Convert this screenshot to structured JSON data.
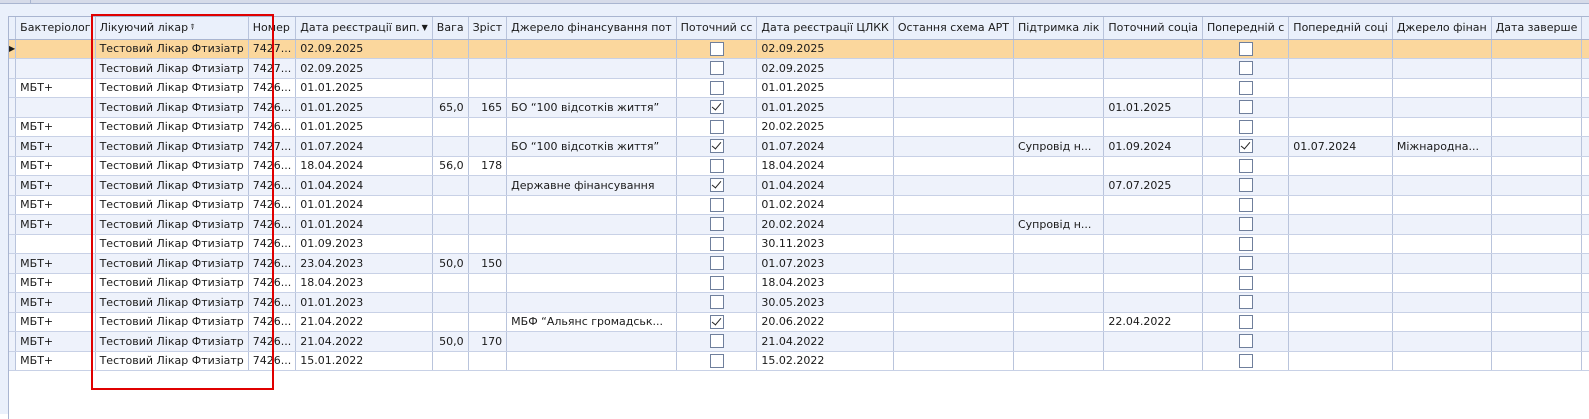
{
  "columns": [
    "Бактеріолог",
    "Лікуючий лікар",
    "Номер",
    "Дата реєстрації вип.",
    "Вага",
    "Зріст",
    "Джерело фінансування пот",
    "Поточний сс",
    "Дата реєстрації ЦЛКК",
    "Остання схема АРТ",
    "Підтримка лік",
    "Поточний соціа",
    "Попередній с",
    "Попередній соці",
    "Джерело фінан",
    "Дата заверше"
  ],
  "sort_icon": "sort-desc-icon",
  "filter_icon": "filter-icon",
  "highlight_color": "#e00000",
  "selected_row_color": "#fbd79d",
  "rows": [
    [
      "",
      "Тестовий Лікар Фтизіатр",
      "7427...",
      "02.09.2025",
      "",
      "",
      "",
      false,
      "02.09.2025",
      "",
      "",
      "",
      false,
      "",
      "",
      ""
    ],
    [
      "",
      "Тестовий Лікар Фтизіатр",
      "7427...",
      "02.09.2025",
      "",
      "",
      "",
      false,
      "02.09.2025",
      "",
      "",
      "",
      false,
      "",
      "",
      ""
    ],
    [
      "МБТ+",
      "Тестовий Лікар Фтизіатр",
      "7426...",
      "01.01.2025",
      "",
      "",
      "",
      false,
      "01.01.2025",
      "",
      "",
      "",
      false,
      "",
      "",
      ""
    ],
    [
      "",
      "Тестовий Лікар Фтизіатр",
      "7426...",
      "01.01.2025",
      "65,0",
      "165",
      "БО “100 відсотків життя”",
      true,
      "01.01.2025",
      "",
      "",
      "01.01.2025",
      false,
      "",
      "",
      ""
    ],
    [
      "МБТ+",
      "Тестовий Лікар Фтизіатр",
      "7426...",
      "01.01.2025",
      "",
      "",
      "",
      false,
      "20.02.2025",
      "",
      "",
      "",
      false,
      "",
      "",
      ""
    ],
    [
      "МБТ+",
      "Тестовий Лікар Фтизіатр",
      "7427...",
      "01.07.2024",
      "",
      "",
      "БО “100 відсотків життя”",
      true,
      "01.07.2024",
      "",
      "Супровід н...",
      "01.09.2024",
      true,
      "01.07.2024",
      "Міжнародна...",
      ""
    ],
    [
      "МБТ+",
      "Тестовий Лікар Фтизіатр",
      "7426...",
      "18.04.2024",
      "56,0",
      "178",
      "",
      false,
      "18.04.2024",
      "",
      "",
      "",
      false,
      "",
      "",
      ""
    ],
    [
      "МБТ+",
      "Тестовий Лікар Фтизіатр",
      "7426...",
      "01.04.2024",
      "",
      "",
      "Державне фінансування",
      true,
      "01.04.2024",
      "",
      "",
      "07.07.2025",
      false,
      "",
      "",
      ""
    ],
    [
      "МБТ+",
      "Тестовий Лікар Фтизіатр",
      "7426...",
      "01.01.2024",
      "",
      "",
      "",
      false,
      "01.02.2024",
      "",
      "",
      "",
      false,
      "",
      "",
      ""
    ],
    [
      "МБТ+",
      "Тестовий Лікар Фтизіатр",
      "7426...",
      "01.01.2024",
      "",
      "",
      "",
      false,
      "20.02.2024",
      "",
      "Супровід н...",
      "",
      false,
      "",
      "",
      ""
    ],
    [
      "",
      "Тестовий Лікар Фтизіатр",
      "7426...",
      "01.09.2023",
      "",
      "",
      "",
      false,
      "30.11.2023",
      "",
      "",
      "",
      false,
      "",
      "",
      ""
    ],
    [
      "МБТ+",
      "Тестовий Лікар Фтизіатр",
      "7426...",
      "23.04.2023",
      "50,0",
      "150",
      "",
      false,
      "01.07.2023",
      "",
      "",
      "",
      false,
      "",
      "",
      ""
    ],
    [
      "МБТ+",
      "Тестовий Лікар Фтизіатр",
      "7426...",
      "18.04.2023",
      "",
      "",
      "",
      false,
      "18.04.2023",
      "",
      "",
      "",
      false,
      "",
      "",
      ""
    ],
    [
      "МБТ+",
      "Тестовий Лікар Фтизіатр",
      "7426...",
      "01.01.2023",
      "",
      "",
      "",
      false,
      "30.05.2023",
      "",
      "",
      "",
      false,
      "",
      "",
      ""
    ],
    [
      "МБТ+",
      "Тестовий Лікар Фтизіатр",
      "7426...",
      "21.04.2022",
      "",
      "",
      "МБФ “Альянс громадськ...",
      true,
      "20.06.2022",
      "",
      "",
      "22.04.2022",
      false,
      "",
      "",
      ""
    ],
    [
      "МБТ+",
      "Тестовий Лікар Фтизіатр",
      "7426...",
      "21.04.2022",
      "50,0",
      "170",
      "",
      false,
      "21.04.2022",
      "",
      "",
      "",
      false,
      "",
      "",
      ""
    ],
    [
      "МБТ+",
      "Тестовий Лікар Фтизіатр",
      "7426...",
      "15.01.2022",
      "",
      "",
      "",
      false,
      "15.02.2022",
      "",
      "",
      "",
      false,
      "",
      "",
      ""
    ]
  ]
}
